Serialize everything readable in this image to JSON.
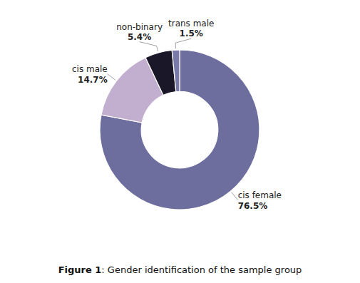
{
  "chart_data": {
    "type": "pie",
    "title": "Figure 1",
    "subtitle": ": Gender identification of the sample group",
    "categories": [
      "cis female",
      "cis male",
      "non-binary",
      "trans male"
    ],
    "values": [
      76.5,
      14.7,
      5.4,
      1.5
    ],
    "value_labels": [
      "76.5%",
      "14.7%",
      "5.4%",
      "1.5%"
    ],
    "colors": [
      "#6e6e9e",
      "#c2aece",
      "#1a1828",
      "#7a7aaa"
    ],
    "data_labels": true
  }
}
